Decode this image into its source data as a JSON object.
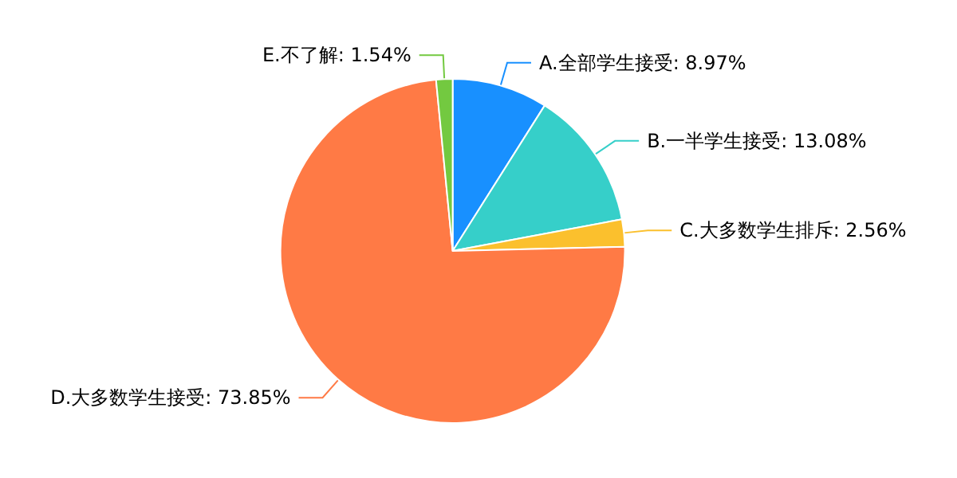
{
  "chart_data": {
    "type": "pie",
    "categories": [
      "A.全部学生接受",
      "B.一半学生接受",
      "C.大多数学生排斥",
      "D.大多数学生接受",
      "E.不了解"
    ],
    "values": [
      8.97,
      13.08,
      2.56,
      73.85,
      1.54
    ],
    "value_labels": [
      "8.97%",
      "13.08%",
      "2.56%",
      "73.85%",
      "1.54%"
    ],
    "colors": [
      "#1890ff",
      "#36cfc9",
      "#fbc02d",
      "#ff7a45",
      "#73c940"
    ],
    "legend": false
  }
}
